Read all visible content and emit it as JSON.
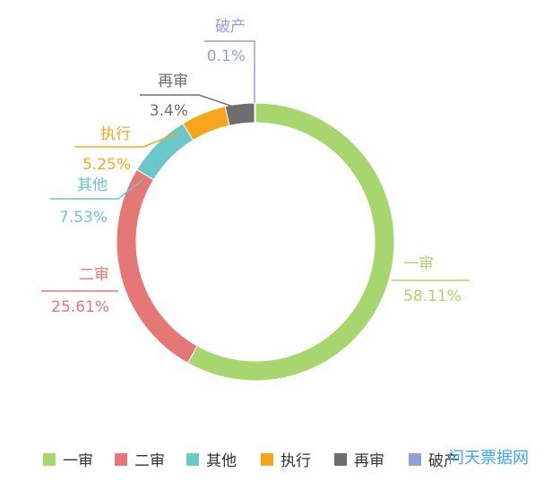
{
  "watermark": "问天票据网",
  "chart_data": {
    "type": "pie",
    "variant": "donut",
    "title": "",
    "legend_position": "bottom",
    "slices": [
      {
        "label": "一审",
        "value": 58.11,
        "display": "58.11%",
        "color": "#a8d66e"
      },
      {
        "label": "二审",
        "value": 25.61,
        "display": "25.61%",
        "color": "#e57777"
      },
      {
        "label": "其他",
        "value": 7.53,
        "display": "7.53%",
        "color": "#6cc8c8"
      },
      {
        "label": "执行",
        "value": 5.25,
        "display": "5.25%",
        "color": "#f7a61b"
      },
      {
        "label": "再审",
        "value": 3.4,
        "display": "3.4%",
        "color": "#6e6e6e"
      },
      {
        "label": "破产",
        "value": 0.1,
        "display": "0.1%",
        "color": "#8fa0dc"
      }
    ]
  }
}
